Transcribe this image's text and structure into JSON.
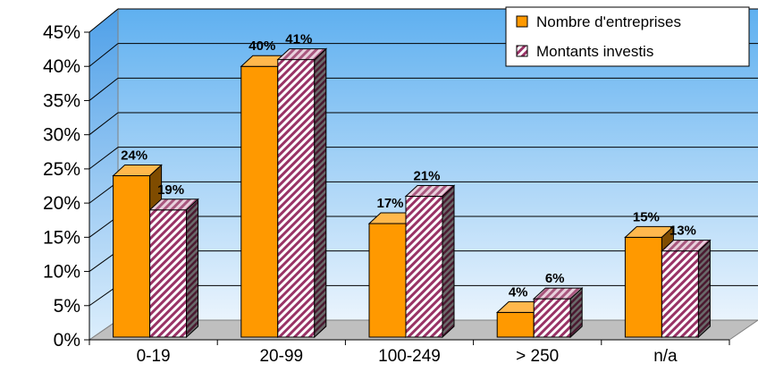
{
  "chart_data": {
    "type": "bar",
    "title": "",
    "xlabel": "",
    "ylabel": "",
    "categories": [
      "0-19",
      "20-99",
      "100-249",
      "> 250",
      "n/a"
    ],
    "series": [
      {
        "name": "Nombre d'entreprises",
        "color": "#FF9900",
        "values": [
          24,
          40,
          17,
          4,
          15
        ],
        "labels": [
          "24%",
          "40%",
          "17%",
          "4%",
          "15%"
        ]
      },
      {
        "name": "Montants investis",
        "color": "#993366",
        "pattern": "diagonal-stripes",
        "values": [
          19,
          41,
          21,
          6,
          13
        ],
        "labels": [
          "19%",
          "41%",
          "21%",
          "6%",
          "13%"
        ]
      }
    ],
    "yticks": [
      "0%",
      "5%",
      "10%",
      "15%",
      "20%",
      "25%",
      "30%",
      "35%",
      "40%",
      "45%"
    ],
    "ylim": [
      0,
      45
    ],
    "grid": true,
    "legend_position": "top-right"
  }
}
